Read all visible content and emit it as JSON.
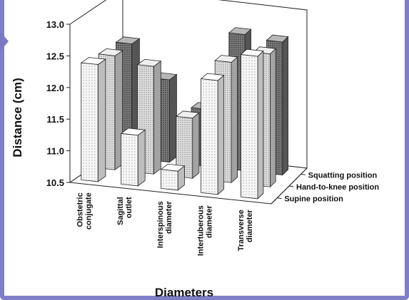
{
  "chart_data": {
    "type": "bar",
    "title": "",
    "xlabel": "Diameters",
    "ylabel": "Distance (cm)",
    "ylim": [
      10.5,
      13.0
    ],
    "yticks": [
      "10.5",
      "11.0",
      "11.5",
      "12.0",
      "12.5",
      "13.0"
    ],
    "grid": false,
    "categories": [
      [
        "Obstetric",
        "conjugate"
      ],
      [
        "Sagittal",
        "outlet"
      ],
      [
        "Interspinous",
        "diameter"
      ],
      [
        "Intertuberous",
        "diameter"
      ],
      [
        "Transverse",
        "diameter"
      ]
    ],
    "series": [
      {
        "name": "Supine position",
        "values": [
          12.35,
          11.3,
          10.8,
          12.3,
          12.75
        ]
      },
      {
        "name": "Hand-to-knee position",
        "values": [
          12.3,
          12.2,
          11.45,
          12.4,
          12.6
        ]
      },
      {
        "name": "Squatting position",
        "values": [
          12.3,
          11.8,
          11.4,
          12.65,
          12.6
        ]
      }
    ],
    "colors": {
      "supine": "#f4f4f4",
      "hand_to_knee": "#d6d6d6",
      "squatting": "#9a9a9a",
      "frame": "#7f7fc8"
    }
  }
}
